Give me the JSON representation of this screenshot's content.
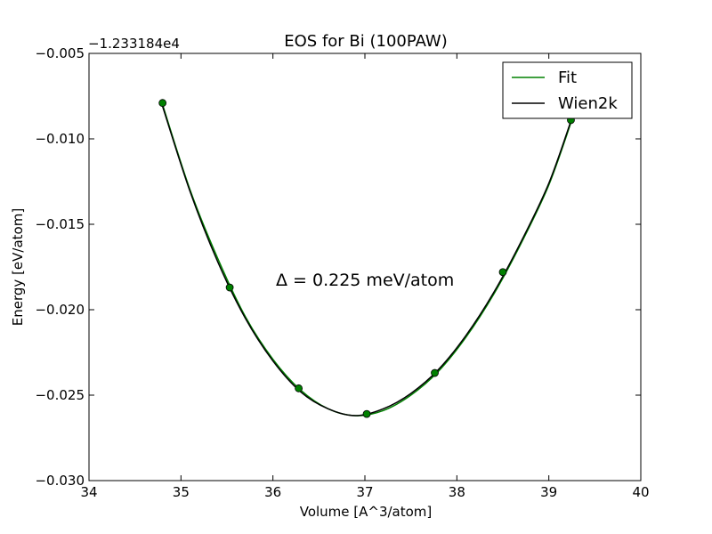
{
  "chart_data": {
    "type": "line",
    "title": "EOS for Bi (100PAW)",
    "xlabel": "Volume [A^3/atom]",
    "ylabel": "Energy [eV/atom]",
    "y_offset_label": "−1.233184e4",
    "xlim": [
      34,
      40
    ],
    "ylim": [
      -0.03,
      -0.005
    ],
    "x_ticks": [
      34,
      35,
      36,
      37,
      38,
      39,
      40
    ],
    "x_tick_labels": [
      "34",
      "35",
      "36",
      "37",
      "38",
      "39",
      "40"
    ],
    "y_ticks": [
      -0.03,
      -0.025,
      -0.02,
      -0.015,
      -0.01,
      -0.005
    ],
    "y_tick_labels": [
      "−0.030",
      "−0.025",
      "−0.020",
      "−0.015",
      "−0.010",
      "−0.005"
    ],
    "grid": false,
    "legend_position": "top-right",
    "annotation": "Δ = 0.225 meV/atom",
    "series": [
      {
        "name": "Fit",
        "kind": "line",
        "color": "#008000",
        "x": [
          34.8,
          35.1,
          35.4,
          35.7,
          36.0,
          36.3,
          36.6,
          36.9,
          37.2,
          37.5,
          37.8,
          38.1,
          38.4,
          38.7,
          39.0,
          39.25
        ],
        "y": [
          -0.008,
          -0.013,
          -0.017,
          -0.0204,
          -0.0229,
          -0.0247,
          -0.0258,
          -0.0262,
          -0.0259,
          -0.025,
          -0.0236,
          -0.0216,
          -0.0191,
          -0.0161,
          -0.0127,
          -0.0089
        ]
      },
      {
        "name": "Wien2k",
        "kind": "line",
        "color": "#000000",
        "x": [
          34.8,
          35.1,
          35.4,
          35.7,
          36.0,
          36.3,
          36.6,
          36.9,
          37.2,
          37.5,
          37.8,
          38.1,
          38.4,
          38.7,
          39.0,
          39.25
        ],
        "y": [
          -0.0081,
          -0.0131,
          -0.0172,
          -0.0205,
          -0.023,
          -0.0248,
          -0.0258,
          -0.0262,
          -0.0258,
          -0.0249,
          -0.0235,
          -0.0215,
          -0.019,
          -0.016,
          -0.0126,
          -0.0088
        ]
      },
      {
        "name": "",
        "kind": "markers",
        "color": "#008000",
        "x": [
          34.8,
          35.53,
          36.28,
          37.02,
          37.76,
          38.5,
          39.24
        ],
        "y": [
          -0.0079,
          -0.0187,
          -0.0246,
          -0.0261,
          -0.0237,
          -0.0178,
          -0.0089
        ]
      }
    ]
  }
}
